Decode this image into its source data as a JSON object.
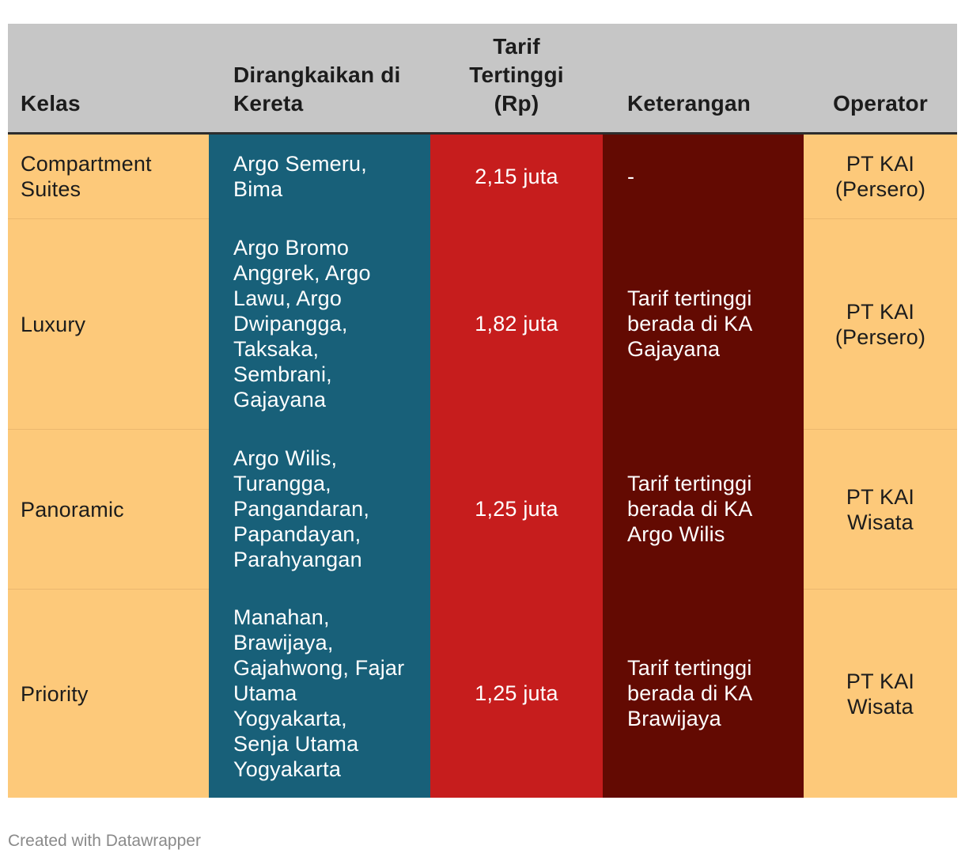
{
  "table": {
    "headers": [
      "Kelas",
      "Dirangkaikan di\nKereta",
      "Tarif\nTertinggi\n(Rp)",
      "Keterangan",
      "Operator"
    ],
    "rows": [
      {
        "kelas": "Compartment\nSuites",
        "kereta": "Argo Semeru,\nBima",
        "tarif": "2,15 juta",
        "keterangan": "-",
        "operator": "PT KAI\n(Persero)"
      },
      {
        "kelas": "Luxury",
        "kereta": "Argo Bromo\nAnggrek, Argo\nLawu, Argo\nDwipangga,\nTaksaka,\nSembrani,\nGajayana",
        "tarif": "1,82 juta",
        "keterangan": "Tarif tertinggi\nberada di KA\nGajayana",
        "operator": "PT KAI\n(Persero)"
      },
      {
        "kelas": "Panoramic",
        "kereta": "Argo Wilis,\nTurangga,\nPangandaran,\nPapandayan,\nParahyangan",
        "tarif": "1,25 juta",
        "keterangan": "Tarif tertinggi\nberada di KA\nArgo Wilis",
        "operator": "PT KAI\nWisata"
      },
      {
        "kelas": "Priority",
        "kereta": "Manahan,\nBrawijaya,\nGajahwong, Fajar\nUtama\nYogyakarta,\nSenja Utama\nYogyakarta",
        "tarif": "1,25 juta",
        "keterangan": "Tarif tertinggi\nberada di KA\nBrawijaya",
        "operator": "PT KAI\nWisata"
      }
    ]
  },
  "footer": "Created with Datawrapper",
  "colors": {
    "header_bg": "#c6c6c6",
    "kelas_bg": "#fdc97a",
    "kereta_bg": "#186079",
    "tarif_bg": "#c61d1d",
    "keterangan_bg": "#630a02",
    "operator_bg": "#fdc97a"
  }
}
